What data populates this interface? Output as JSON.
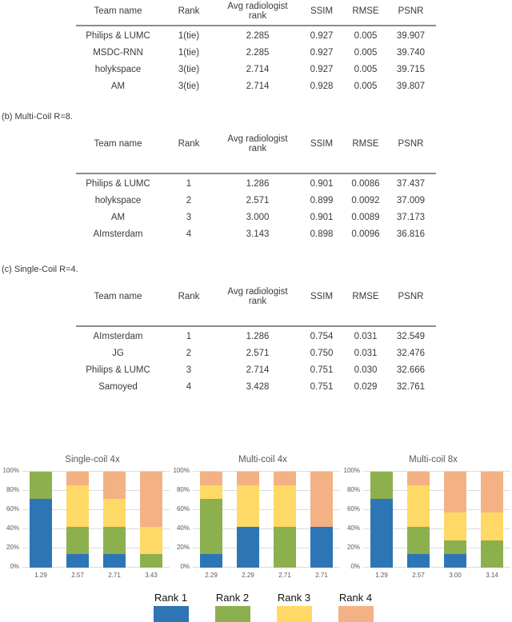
{
  "tables": [
    {
      "caption": "",
      "headers": [
        "Team name",
        "Rank",
        "Avg radiologist rank",
        "SSIM",
        "RMSE",
        "PSNR"
      ],
      "rows": [
        [
          "Philips & LUMC",
          "1(tie)",
          "2.285",
          "0.927",
          "0.005",
          "39.907"
        ],
        [
          "MSDC-RNN",
          "1(tie)",
          "2.285",
          "0.927",
          "0.005",
          "39.740"
        ],
        [
          "holykspace",
          "3(tie)",
          "2.714",
          "0.927",
          "0.005",
          "39.715"
        ],
        [
          "AM",
          "3(tie)",
          "2.714",
          "0.928",
          "0.005",
          "39.807"
        ]
      ]
    },
    {
      "caption": "(b) Multi-Coil R=8.",
      "headers": [
        "Team name",
        "Rank",
        "Avg radiologist rank",
        "SSIM",
        "RMSE",
        "PSNR"
      ],
      "rows": [
        [
          "Philips & LUMC",
          "1",
          "1.286",
          "0.901",
          "0.0086",
          "37.437"
        ],
        [
          "holykspace",
          "2",
          "2.571",
          "0.899",
          "0.0092",
          "37.009"
        ],
        [
          "AM",
          "3",
          "3.000",
          "0.901",
          "0.0089",
          "37.173"
        ],
        [
          "AImsterdam",
          "4",
          "3.143",
          "0.898",
          "0.0096",
          "36.816"
        ]
      ]
    },
    {
      "caption": "(c) Single-Coil R=4.",
      "headers": [
        "Team name",
        "Rank",
        "Avg radiologist rank",
        "SSIM",
        "RMSE",
        "PSNR"
      ],
      "rows": [
        [
          "AImsterdam",
          "1",
          "1.286",
          "0.754",
          "0.031",
          "32.549"
        ],
        [
          "JG",
          "2",
          "2.571",
          "0.750",
          "0.031",
          "32.476"
        ],
        [
          "Philips & LUMC",
          "3",
          "2.714",
          "0.751",
          "0.030",
          "32.666"
        ],
        [
          "Samoyed",
          "4",
          "3.428",
          "0.751",
          "0.029",
          "32.761"
        ]
      ]
    }
  ],
  "chart_data": [
    {
      "type": "bar",
      "stacked": true,
      "title": "Single-coil 4x",
      "categories": [
        "1.29",
        "2.57",
        "2.71",
        "3.43"
      ],
      "series": [
        {
          "name": "Rank 1",
          "values": [
            71.4,
            14.3,
            14.3,
            0
          ]
        },
        {
          "name": "Rank 2",
          "values": [
            28.6,
            28.6,
            28.6,
            14.3
          ]
        },
        {
          "name": "Rank 3",
          "values": [
            0,
            42.9,
            28.6,
            28.6
          ]
        },
        {
          "name": "Rank 4",
          "values": [
            0,
            14.3,
            28.6,
            57.1
          ]
        }
      ],
      "xlabel": "",
      "ylabel": "",
      "ylim": [
        0,
        100
      ],
      "grid": true,
      "yticks": [
        "0%",
        "20%",
        "40%",
        "60%",
        "80%",
        "100%"
      ]
    },
    {
      "type": "bar",
      "stacked": true,
      "title": "Multi-coil 4x",
      "categories": [
        "2.29",
        "2.29",
        "2.71",
        "2.71"
      ],
      "series": [
        {
          "name": "Rank 1",
          "values": [
            14.3,
            42.9,
            0,
            42.9
          ]
        },
        {
          "name": "Rank 2",
          "values": [
            57.1,
            0,
            42.9,
            0
          ]
        },
        {
          "name": "Rank 3",
          "values": [
            14.3,
            42.9,
            42.9,
            0
          ]
        },
        {
          "name": "Rank 4",
          "values": [
            14.3,
            14.3,
            14.3,
            57.1
          ]
        }
      ],
      "xlabel": "",
      "ylabel": "",
      "ylim": [
        0,
        100
      ],
      "grid": true,
      "yticks": [
        "0%",
        "20%",
        "40%",
        "60%",
        "80%",
        "100%"
      ]
    },
    {
      "type": "bar",
      "stacked": true,
      "title": "Multi-coil 8x",
      "categories": [
        "1.29",
        "2.57",
        "3.00",
        "3.14"
      ],
      "series": [
        {
          "name": "Rank 1",
          "values": [
            71.4,
            14.3,
            14.3,
            0
          ]
        },
        {
          "name": "Rank 2",
          "values": [
            28.6,
            28.6,
            14.3,
            28.6
          ]
        },
        {
          "name": "Rank 3",
          "values": [
            0,
            42.9,
            28.6,
            28.6
          ]
        },
        {
          "name": "Rank 4",
          "values": [
            0,
            14.3,
            42.9,
            42.9
          ]
        }
      ],
      "xlabel": "",
      "ylabel": "",
      "ylim": [
        0,
        100
      ],
      "grid": true,
      "yticks": [
        "0%",
        "20%",
        "40%",
        "60%",
        "80%",
        "100%"
      ]
    }
  ],
  "legend": {
    "items": [
      {
        "label": "Rank 1",
        "color": "#2e75b6"
      },
      {
        "label": "Rank 2",
        "color": "#8db04e"
      },
      {
        "label": "Rank 3",
        "color": "#ffd966"
      },
      {
        "label": "Rank 4",
        "color": "#f4b183"
      }
    ]
  }
}
